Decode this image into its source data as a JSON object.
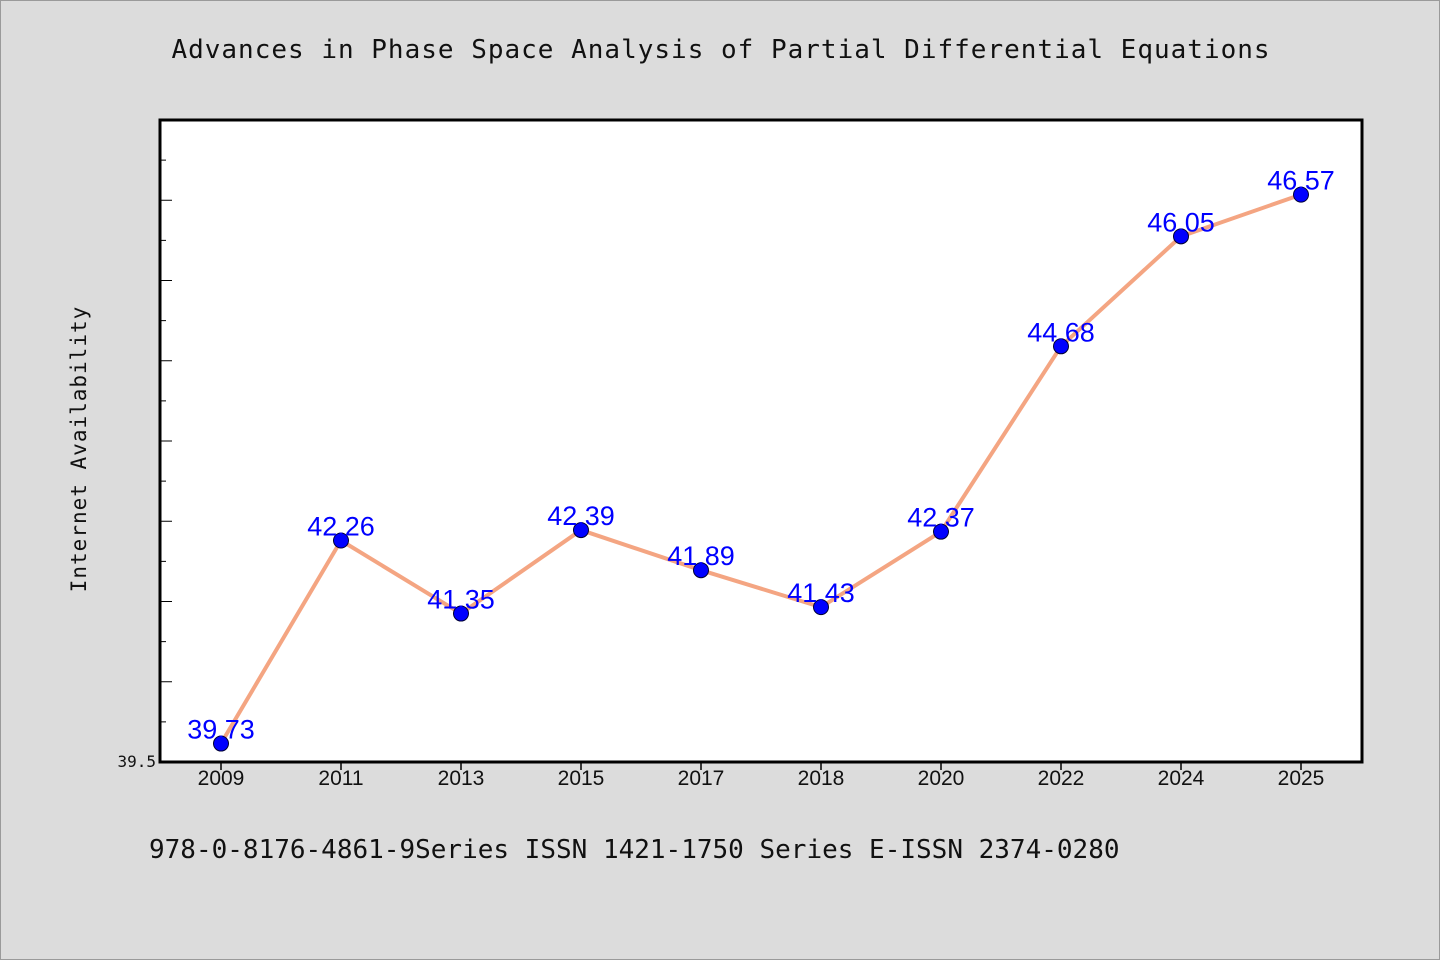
{
  "chart_data": {
    "type": "line",
    "title": "Advances in Phase Space Analysis of Partial Differential Equations",
    "xlabel": "",
    "ylabel": "Internet Availability",
    "categories": [
      "2009",
      "2011",
      "2013",
      "2015",
      "2017",
      "2018",
      "2020",
      "2022",
      "2024",
      "2025"
    ],
    "series": [
      {
        "values": [
          39.73,
          42.26,
          41.35,
          42.39,
          41.89,
          41.43,
          42.37,
          44.68,
          46.05,
          46.57
        ],
        "labels": [
          "39.73",
          "42.26",
          "41.35",
          "42.39",
          "41.89",
          "41.43",
          "42.37",
          "44.68",
          "46.05",
          "46.57"
        ]
      }
    ],
    "ylim": [
      39.5,
      47.5
    ],
    "yticks_labeled": [
      "39.5"
    ],
    "grid": false,
    "legend": "none",
    "colors": {
      "line": "#f4a582",
      "marker": "#0000ff",
      "data_label": "#0000ff",
      "background": "#dcdcdc",
      "plot_background": "#ffffff"
    }
  },
  "footer": {
    "text": "978-0-8176-4861-9Series ISSN 1421-1750 Series E-ISSN 2374-0280"
  }
}
